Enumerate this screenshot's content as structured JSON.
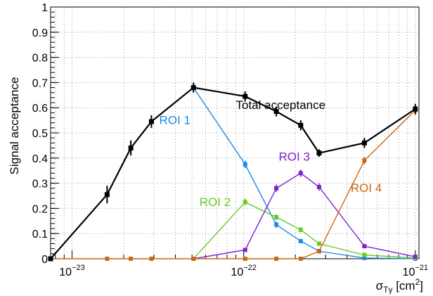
{
  "chart_data": {
    "type": "line",
    "xlabel_base": "σ",
    "xlabel_sub": "Tγ",
    "xlabel_unit": " [cm",
    "xlabel_sup": "2",
    "xlabel_close": "]",
    "ylabel": "Signal acceptance",
    "x_scale": "log",
    "xlim": [
      7.5e-24,
      1.05e-21
    ],
    "ylim": [
      0,
      1
    ],
    "grid": true,
    "x_ticks": [
      {
        "value": 1e-23,
        "base": "10",
        "exp": "−23"
      },
      {
        "value": 1e-22,
        "base": "10",
        "exp": "−22"
      },
      {
        "value": 1e-21,
        "base": "10",
        "exp": "−21"
      }
    ],
    "y_ticks": [
      {
        "value": 0,
        "label": "0"
      },
      {
        "value": 0.1,
        "label": "0.1"
      },
      {
        "value": 0.2,
        "label": "0.2"
      },
      {
        "value": 0.3,
        "label": "0.3"
      },
      {
        "value": 0.4,
        "label": "0.4"
      },
      {
        "value": 0.5,
        "label": "0.5"
      },
      {
        "value": 0.6,
        "label": "0.6"
      },
      {
        "value": 0.7,
        "label": "0.7"
      },
      {
        "value": 0.8,
        "label": "0.8"
      },
      {
        "value": 0.9,
        "label": "0.9"
      },
      {
        "value": 1,
        "label": "1"
      }
    ],
    "series": [
      {
        "name": "Total acceptance",
        "color": "#000000",
        "label_x": 9e-23,
        "label_y": 0.595,
        "label_anchor": "start",
        "points": [
          {
            "x": 7.5e-24,
            "y": 0.0,
            "err": 0.0
          },
          {
            "x": 1.6e-23,
            "y": 0.255,
            "err": 0.035
          },
          {
            "x": 2.2e-23,
            "y": 0.44,
            "err": 0.03
          },
          {
            "x": 2.9e-23,
            "y": 0.545,
            "err": 0.025
          },
          {
            "x": 5.1e-23,
            "y": 0.68,
            "err": 0.02
          },
          {
            "x": 1.02e-22,
            "y": 0.645,
            "err": 0.02
          },
          {
            "x": 1.55e-22,
            "y": 0.585,
            "err": 0.02
          },
          {
            "x": 2.15e-22,
            "y": 0.53,
            "err": 0.02
          },
          {
            "x": 2.75e-22,
            "y": 0.42,
            "err": 0.015
          },
          {
            "x": 5.05e-22,
            "y": 0.46,
            "err": 0.02
          },
          {
            "x": 1e-21,
            "y": 0.595,
            "err": 0.02
          }
        ]
      },
      {
        "name": "ROI 1",
        "color": "#1e88e5",
        "label_x": 4.9e-23,
        "label_y": 0.535,
        "label_anchor": "end",
        "points": [
          {
            "x": 5.1e-23,
            "y": 0.68,
            "err": 0.015
          },
          {
            "x": 1.02e-22,
            "y": 0.375,
            "err": 0.015
          },
          {
            "x": 1.55e-22,
            "y": 0.135,
            "err": 0.012
          },
          {
            "x": 2.15e-22,
            "y": 0.07,
            "err": 0.008
          },
          {
            "x": 2.75e-22,
            "y": 0.03,
            "err": 0.005
          },
          {
            "x": 5.05e-22,
            "y": 0.003,
            "err": 0.0
          },
          {
            "x": 1e-21,
            "y": 0.0,
            "err": 0.0
          }
        ]
      },
      {
        "name": "ROI 2",
        "color": "#66cc22",
        "label_x": 8.4e-23,
        "label_y": 0.21,
        "label_anchor": "end",
        "points": [
          {
            "x": 5.1e-23,
            "y": 0.0,
            "err": 0.0
          },
          {
            "x": 1.02e-22,
            "y": 0.225,
            "err": 0.015
          },
          {
            "x": 1.55e-22,
            "y": 0.165,
            "err": 0.012
          },
          {
            "x": 2.15e-22,
            "y": 0.115,
            "err": 0.01
          },
          {
            "x": 2.75e-22,
            "y": 0.06,
            "err": 0.008
          },
          {
            "x": 5.05e-22,
            "y": 0.015,
            "err": 0.004
          },
          {
            "x": 1e-21,
            "y": 0.003,
            "err": 0.0
          }
        ]
      },
      {
        "name": "ROI 3",
        "color": "#7e22ce",
        "label_x": 1.6e-22,
        "label_y": 0.39,
        "label_anchor": "start",
        "points": [
          {
            "x": 5.1e-23,
            "y": 0.0,
            "err": 0.0
          },
          {
            "x": 1.02e-22,
            "y": 0.035,
            "err": 0.0
          },
          {
            "x": 1.55e-22,
            "y": 0.28,
            "err": 0.015
          },
          {
            "x": 2.15e-22,
            "y": 0.34,
            "err": 0.015
          },
          {
            "x": 2.75e-22,
            "y": 0.285,
            "err": 0.015
          },
          {
            "x": 5.05e-22,
            "y": 0.05,
            "err": 0.005
          },
          {
            "x": 1e-21,
            "y": 0.008,
            "err": 0.0
          }
        ]
      },
      {
        "name": "ROI 4",
        "color": "#cc6611",
        "label_x": 4.2e-22,
        "label_y": 0.265,
        "label_anchor": "start",
        "points": [
          {
            "x": 7.5e-24,
            "y": 0.0,
            "err": 0.0
          },
          {
            "x": 1.6e-23,
            "y": 0.0,
            "err": 0.0
          },
          {
            "x": 2.2e-23,
            "y": 0.0,
            "err": 0.0
          },
          {
            "x": 2.9e-23,
            "y": 0.0,
            "err": 0.0
          },
          {
            "x": 5.1e-23,
            "y": 0.0,
            "err": 0.0
          },
          {
            "x": 1.02e-22,
            "y": 0.0,
            "err": 0.0
          },
          {
            "x": 1.55e-22,
            "y": 0.0,
            "err": 0.0
          },
          {
            "x": 2.15e-22,
            "y": 0.0,
            "err": 0.0
          },
          {
            "x": 2.75e-22,
            "y": 0.03,
            "err": 0.0
          },
          {
            "x": 5.05e-22,
            "y": 0.39,
            "err": 0.015
          },
          {
            "x": 1e-21,
            "y": 0.59,
            "err": 0.02
          }
        ]
      }
    ]
  }
}
